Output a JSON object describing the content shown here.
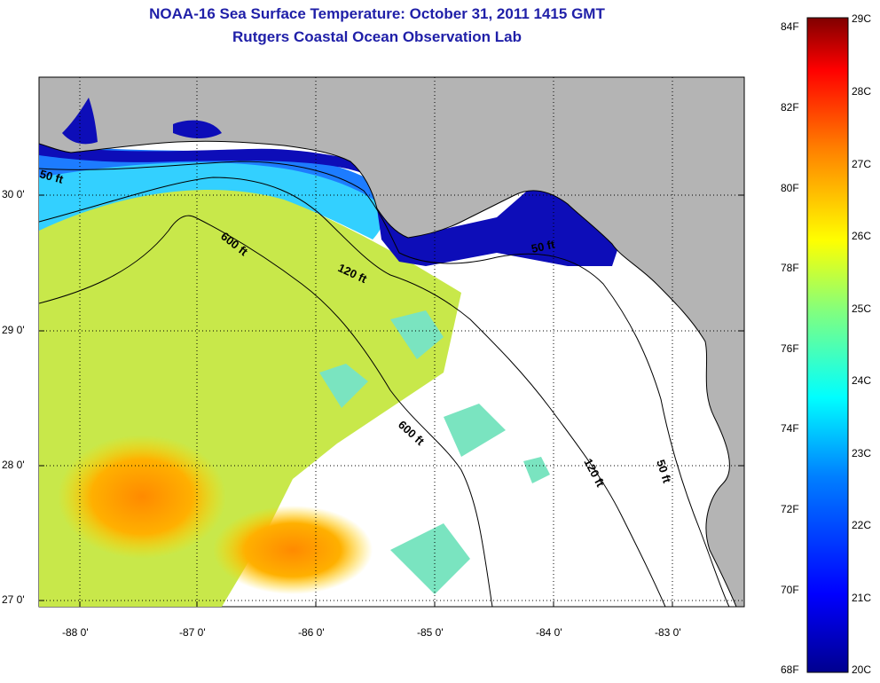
{
  "title": {
    "line1": "NOAA-16 Sea Surface Temperature:  October 31, 2011 1415 GMT",
    "line2": "Rutgers Coastal Ocean Observation Lab"
  },
  "axes": {
    "lon_ticks": [
      "-88 0'",
      "-87 0'",
      "-86 0'",
      "-85 0'",
      "-84 0'",
      "-83 0'"
    ],
    "lat_ticks": [
      "30 0'",
      "29 0'",
      "28 0'",
      "27 0'"
    ]
  },
  "contours": {
    "c50_a": "50 ft",
    "c600_a": "600 ft",
    "c120_a": "120 ft",
    "c50_b": "50 ft",
    "c600_b": "600 ft",
    "c120_b": "120 ft",
    "c50_c": "50 ft"
  },
  "colorbar": {
    "fahrenheit": [
      "84F",
      "82F",
      "80F",
      "78F",
      "76F",
      "74F",
      "72F",
      "70F",
      "68F"
    ],
    "celsius": [
      "29C",
      "28C",
      "27C",
      "26C",
      "25C",
      "24C",
      "23C",
      "22C",
      "21C",
      "20C"
    ],
    "stops": [
      "#00008f",
      "#0000ff",
      "#0080ff",
      "#00ffff",
      "#80ff80",
      "#ffff00",
      "#ff8000",
      "#ff0000",
      "#800000"
    ]
  },
  "colors": {
    "land": "#b4b4b4",
    "cloud": "#ffffff",
    "title": "#1f1fa8"
  }
}
